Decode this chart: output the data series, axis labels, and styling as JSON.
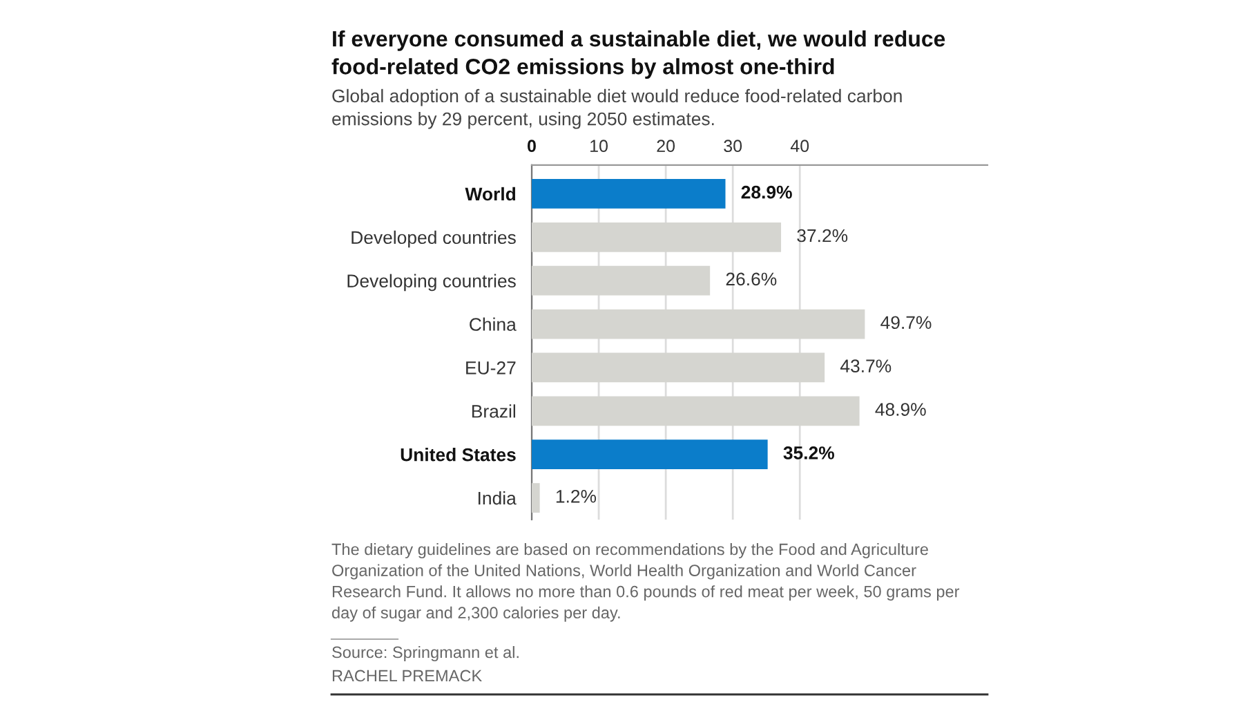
{
  "chart_data": {
    "type": "bar",
    "orientation": "horizontal",
    "title": "If everyone consumed a sustainable diet, we would reduce food-related CO2 emissions by almost one-third",
    "subtitle": "Global adoption of a sustainable diet would reduce food-related carbon emissions by 29 percent, using 2050 estimates.",
    "categories": [
      "World",
      "Developed countries",
      "Developing countries",
      "China",
      "EU-27",
      "Brazil",
      "United States",
      "India"
    ],
    "values": [
      28.9,
      37.2,
      26.6,
      49.7,
      43.7,
      48.9,
      35.2,
      1.2
    ],
    "colors": [
      "#0b7dca",
      "#d5d5d0",
      "#d5d5d0",
      "#d5d5d0",
      "#d5d5d0",
      "#d5d5d0",
      "#0b7dca",
      "#d5d5d0"
    ],
    "value_labels": [
      "28.9%",
      "37.2%",
      "26.6%",
      "49.7%",
      "43.7%",
      "48.9%",
      "35.2%",
      "1.2%"
    ],
    "xlim": [
      0,
      68
    ],
    "xticks": [
      0,
      10,
      20,
      30,
      40
    ],
    "grid": "x",
    "annotations": [
      "The dietary guidelines are based on recommendations by the Food and Agriculture Organization of the United Nations, World Health Organization and World Cancer Research Fund. It allows no more than 0.6 pounds of red meat per week, 50 grams per day of sugar and 2,300 calories per day.",
      "Source: Springmann et al.",
      "RACHEL PREMACK"
    ]
  }
}
